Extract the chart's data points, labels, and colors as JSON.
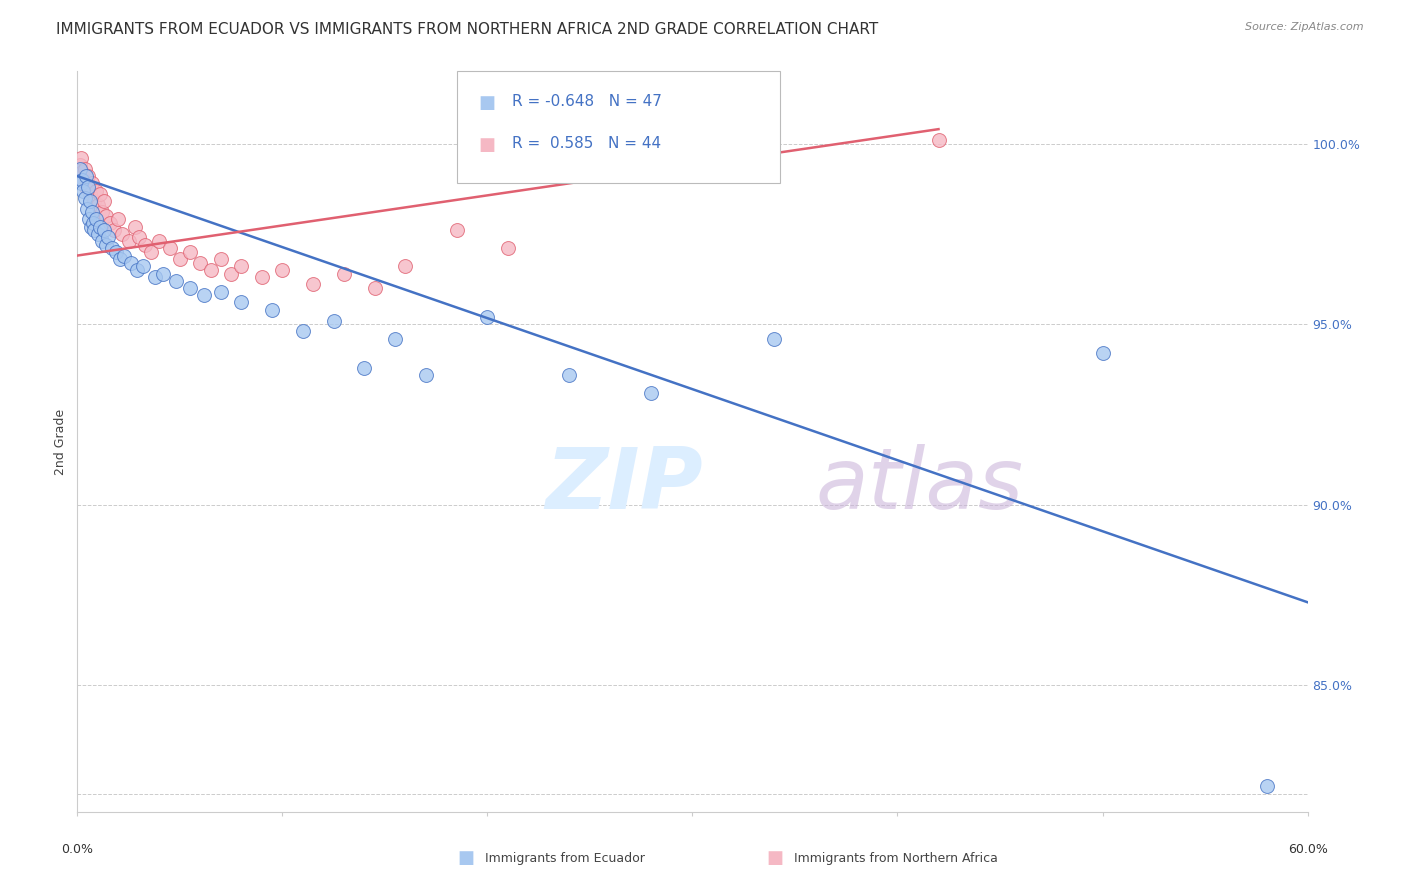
{
  "title": "IMMIGRANTS FROM ECUADOR VS IMMIGRANTS FROM NORTHERN AFRICA 2ND GRADE CORRELATION CHART",
  "source": "Source: ZipAtlas.com",
  "ylabel": "2nd Grade",
  "xlim": [
    0.0,
    60.0
  ],
  "ylim": [
    81.5,
    102.0
  ],
  "legend_r_ecuador": "-0.648",
  "legend_n_ecuador": "47",
  "legend_r_n_africa": " 0.585",
  "legend_n_n_africa": "44",
  "ecuador_color": "#a8c8f0",
  "n_africa_color": "#f5b8c4",
  "ecuador_line_color": "#4472c4",
  "n_africa_line_color": "#e06070",
  "watermark_zip": "ZIP",
  "watermark_atlas": "atlas",
  "watermark_color": "#dceeff",
  "watermark_atlas_color": "#c8b0d8",
  "ytick_vals": [
    82.0,
    85.0,
    90.0,
    95.0,
    100.0
  ],
  "ytick_labels": [
    "",
    "85.0%",
    "90.0%",
    "95.0%",
    "100.0%"
  ],
  "blue_line_x": [
    0.0,
    60.0
  ],
  "blue_line_y": [
    99.1,
    87.3
  ],
  "pink_line_x": [
    0.0,
    42.0
  ],
  "pink_line_y": [
    96.9,
    100.4
  ],
  "ecuador_scatter_x": [
    0.15,
    0.2,
    0.25,
    0.3,
    0.35,
    0.4,
    0.45,
    0.5,
    0.55,
    0.6,
    0.65,
    0.7,
    0.75,
    0.8,
    0.9,
    1.0,
    1.1,
    1.2,
    1.3,
    1.4,
    1.5,
    1.7,
    1.9,
    2.1,
    2.3,
    2.6,
    2.9,
    3.2,
    3.8,
    4.2,
    4.8,
    5.5,
    6.2,
    7.0,
    8.0,
    9.5,
    11.0,
    12.5,
    14.0,
    15.5,
    17.0,
    20.0,
    24.0,
    28.0,
    34.0,
    50.0,
    58.0
  ],
  "ecuador_scatter_y": [
    99.3,
    98.9,
    99.0,
    98.7,
    98.5,
    99.1,
    98.2,
    98.8,
    97.9,
    98.4,
    97.7,
    98.1,
    97.8,
    97.6,
    97.9,
    97.5,
    97.7,
    97.3,
    97.6,
    97.2,
    97.4,
    97.1,
    97.0,
    96.8,
    96.9,
    96.7,
    96.5,
    96.6,
    96.3,
    96.4,
    96.2,
    96.0,
    95.8,
    95.9,
    95.6,
    95.4,
    94.8,
    95.1,
    93.8,
    94.6,
    93.6,
    95.2,
    93.6,
    93.1,
    94.6,
    94.2,
    82.2
  ],
  "n_africa_scatter_x": [
    0.1,
    0.15,
    0.2,
    0.25,
    0.3,
    0.35,
    0.4,
    0.5,
    0.6,
    0.7,
    0.8,
    0.9,
    1.0,
    1.1,
    1.2,
    1.3,
    1.4,
    1.6,
    1.8,
    2.0,
    2.2,
    2.5,
    2.8,
    3.0,
    3.3,
    3.6,
    4.0,
    4.5,
    5.0,
    5.5,
    6.0,
    6.5,
    7.0,
    7.5,
    8.0,
    9.0,
    10.0,
    11.5,
    13.0,
    14.5,
    16.0,
    18.5,
    21.0,
    42.0
  ],
  "n_africa_scatter_y": [
    99.1,
    99.4,
    99.6,
    99.2,
    99.0,
    99.3,
    98.8,
    99.1,
    98.6,
    98.9,
    98.4,
    98.7,
    98.3,
    98.6,
    98.1,
    98.4,
    98.0,
    97.8,
    97.6,
    97.9,
    97.5,
    97.3,
    97.7,
    97.4,
    97.2,
    97.0,
    97.3,
    97.1,
    96.8,
    97.0,
    96.7,
    96.5,
    96.8,
    96.4,
    96.6,
    96.3,
    96.5,
    96.1,
    96.4,
    96.0,
    96.6,
    97.6,
    97.1,
    100.1
  ],
  "background_color": "#ffffff",
  "grid_color": "#cccccc",
  "title_fontsize": 11,
  "axis_label_fontsize": 9,
  "tick_fontsize": 9,
  "legend_fontsize": 11
}
